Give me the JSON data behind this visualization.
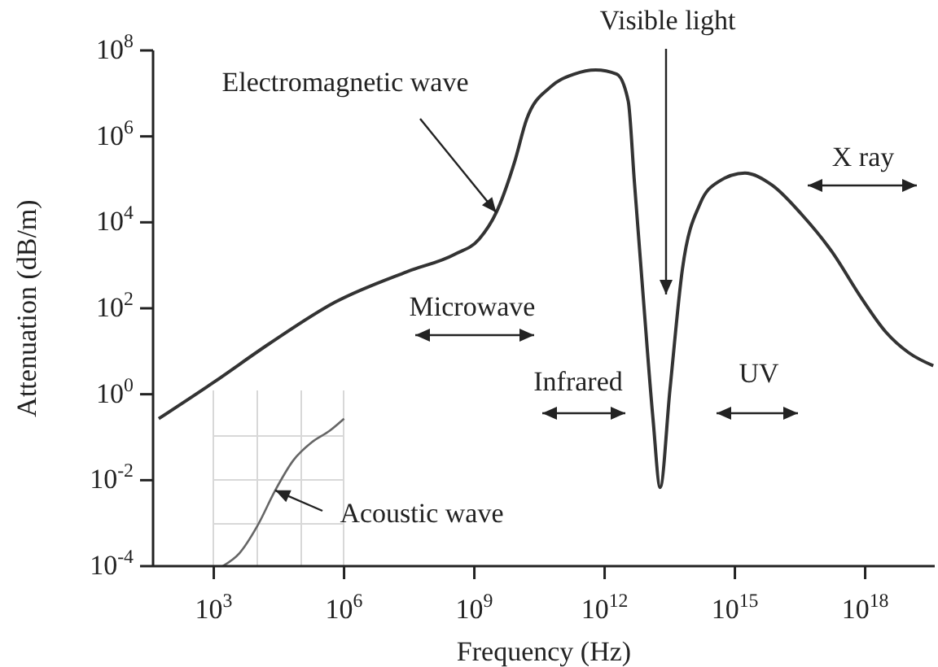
{
  "chart_data": {
    "type": "line",
    "xlabel": "Frequency (Hz)",
    "ylabel": "Attenuation (dB/m)",
    "log": "xy",
    "xlim": [
      40,
      4e+19
    ],
    "ylim": [
      0.0001,
      100000000
    ],
    "xticks": [
      {
        "value": 1000,
        "label": "10$^{3}$"
      },
      {
        "value": 1000000,
        "label": "10$^{6}$"
      },
      {
        "value": 1000000000,
        "label": "10$^{9}$"
      },
      {
        "value": 1000000000000,
        "label": "10$^{12}$"
      },
      {
        "value": 1000000000000000,
        "label": "10$^{15}$"
      },
      {
        "value": 1000000000000000000,
        "label": "10$^{18}$"
      }
    ],
    "yticks": [
      {
        "value": 0.0001,
        "label": "10$^{-4}$"
      },
      {
        "value": 0.01,
        "label": "10$^{-2}$"
      },
      {
        "value": 1,
        "label": "10$^{0}$"
      },
      {
        "value": 100,
        "label": "10$^{2}$"
      },
      {
        "value": 10000,
        "label": "10$^{4}$"
      },
      {
        "value": 1000000,
        "label": "10$^{6}$"
      },
      {
        "value": 100000000,
        "label": "10$^{8}$"
      }
    ],
    "series": [
      {
        "color": "#333333",
        "x": [
          54,
          1000,
          19000,
          630000,
          28000000,
          350000000,
          1300000000,
          3200000000,
          8500000000,
          16000000000,
          56000000000,
          200000000000,
          620000000000,
          1900000000000,
          3500000000000,
          4800000000000,
          7800000000000,
          13000000000000,
          19000000000000,
          32000000000000,
          62000000000000,
          160000000000000,
          410000000000000,
          1700000000000000,
          7100000000000000,
          35000000000000000,
          170000000000000000,
          830000000000000000,
          3000000000000000000,
          10000000000000000000,
          37000000000000000000
        ],
        "values": [
          0.27,
          1.9,
          15,
          140,
          710,
          1800,
          4100,
          17000,
          260000,
          2500000,
          14000000,
          28000000,
          35000000,
          28000000,
          6600000,
          100000,
          170,
          0.27,
          0.0068,
          1.3,
          830,
          28000,
          87000,
          140000,
          74000,
          15000,
          2100,
          170,
          28,
          9.3,
          4.6
        ]
      },
      {
        "color": "#666666",
        "x": [
          1600,
          3900,
          10000,
          26000,
          68000,
          180000,
          460000,
          1000000
        ],
        "values": [
          0.0001,
          0.0002,
          0.00085,
          0.0058,
          0.029,
          0.076,
          0.14,
          0.27
        ]
      }
    ],
    "annotations": [
      {
        "text": "Electromagnetic wave",
        "x": 3200000000,
        "y": 17000
      },
      "Visible light",
      "Microwave",
      "Infrared",
      "UV",
      "X ray",
      {
        "text": "Acoustic wave",
        "x": 26000,
        "y": 0.0058
      }
    ]
  }
}
